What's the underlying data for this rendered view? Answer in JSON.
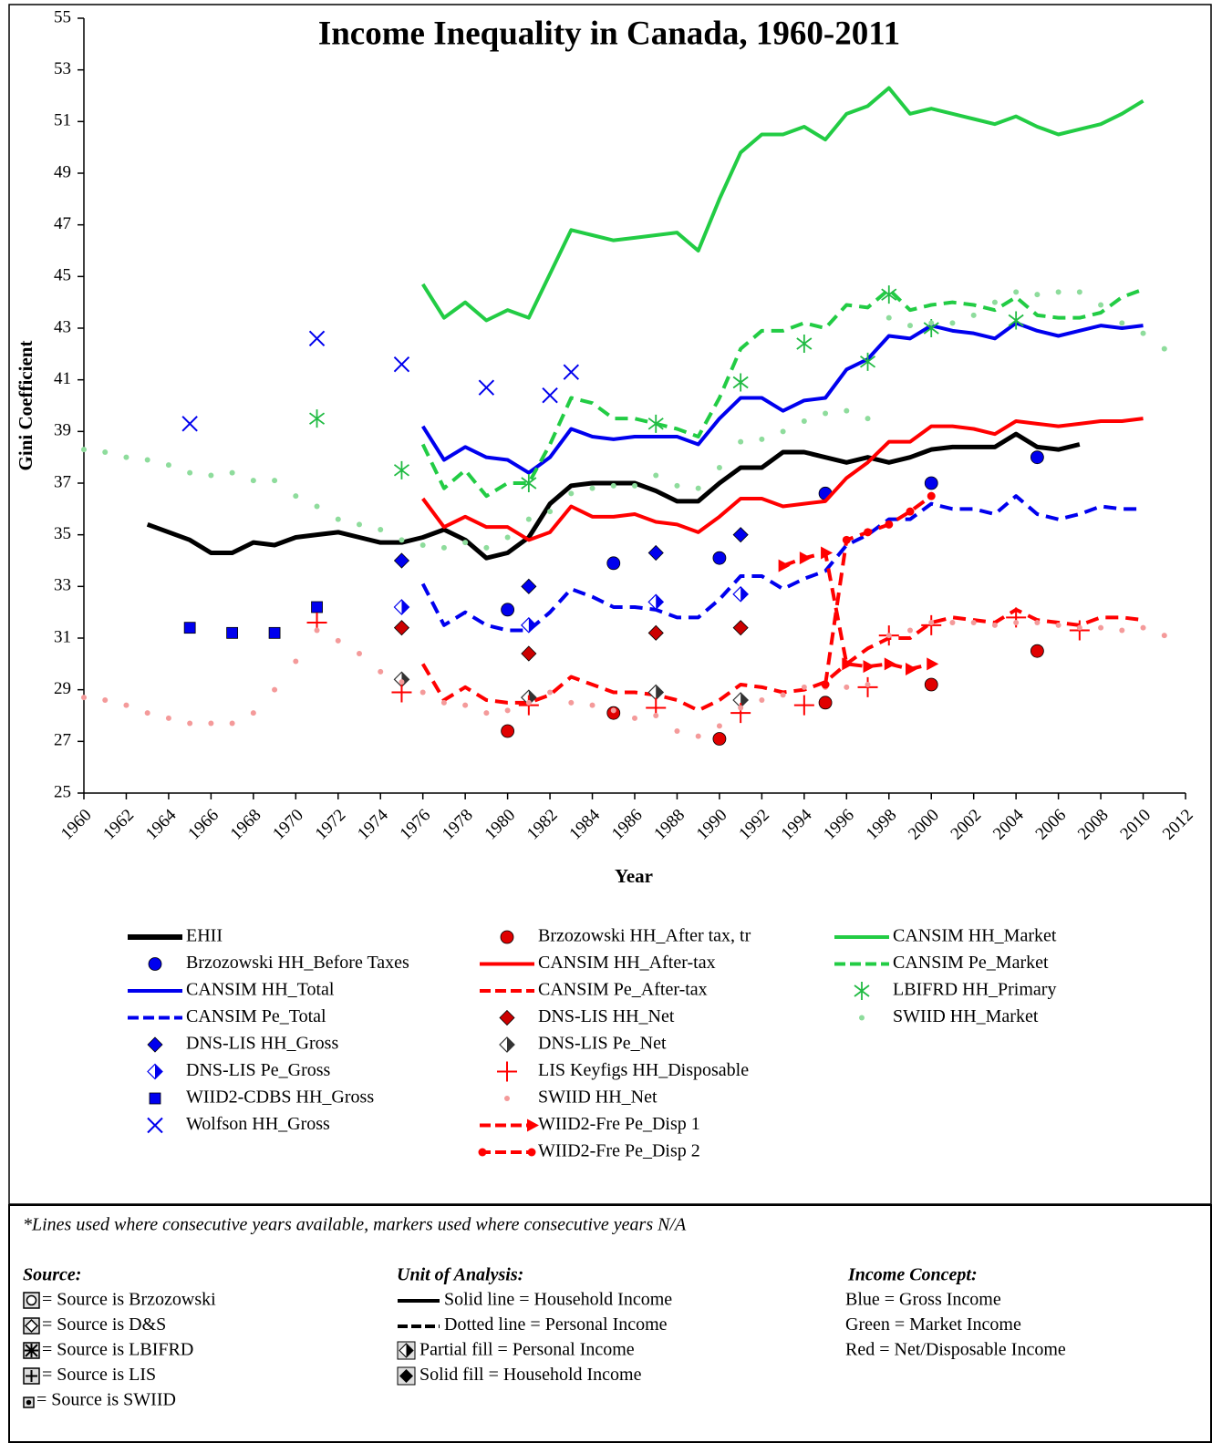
{
  "chart_data": {
    "type": "line",
    "title": "Income Inequality in Canada, 1960-2011",
    "x_label": "Year",
    "y_label": "Gini Coefficient",
    "xlim": [
      1960,
      2012
    ],
    "xticks": [
      1960,
      1962,
      1964,
      1966,
      1968,
      1970,
      1972,
      1974,
      1976,
      1978,
      1980,
      1982,
      1984,
      1986,
      1988,
      1990,
      1992,
      1994,
      1996,
      1998,
      2000,
      2002,
      2004,
      2006,
      2008,
      2010,
      2012
    ],
    "ylim": [
      25,
      55
    ],
    "yticks": [
      25,
      27,
      29,
      31,
      33,
      35,
      37,
      39,
      41,
      43,
      45,
      47,
      49,
      51,
      53,
      55
    ],
    "series": [
      {
        "name": "EHII",
        "color": "#000000",
        "line": "solid",
        "marker": "none",
        "x": [
          1963,
          1964,
          1965,
          1966,
          1967,
          1968,
          1969,
          1970,
          1971,
          1972,
          1973,
          1974,
          1975,
          1976,
          1977,
          1978,
          1979,
          1980,
          1981,
          1982,
          1983,
          1984,
          1985,
          1986,
          1987,
          1988,
          1989,
          1990,
          1991,
          1992,
          1993,
          1994,
          1995,
          1996,
          1997,
          1998,
          1999,
          2000,
          2001,
          2002,
          2003,
          2004,
          2005,
          2006,
          2007
        ],
        "values": [
          35.4,
          35.1,
          34.8,
          34.3,
          34.3,
          34.7,
          34.6,
          34.9,
          35.0,
          35.1,
          34.9,
          34.7,
          34.7,
          34.9,
          35.2,
          34.8,
          34.1,
          34.3,
          34.9,
          36.2,
          36.9,
          37.0,
          37.0,
          37.0,
          36.7,
          36.3,
          36.3,
          37.0,
          37.6,
          37.6,
          38.2,
          38.2,
          38.0,
          37.8,
          38.0,
          37.8,
          38.0,
          38.3,
          38.4,
          38.4,
          38.4,
          38.9,
          38.4,
          38.3,
          38.5
        ]
      },
      {
        "name": "Brzozowski HH_Before Taxes",
        "color": "#0000ee",
        "line": "none",
        "marker": "circle",
        "x": [
          1980,
          1985,
          1990,
          1995,
          2000,
          2005
        ],
        "values": [
          32.1,
          33.9,
          34.1,
          36.6,
          37.0,
          38.0
        ]
      },
      {
        "name": "CANSIM HH_Total",
        "color": "#0000ee",
        "line": "solid",
        "marker": "none",
        "x": [
          1976,
          1977,
          1978,
          1979,
          1980,
          1981,
          1982,
          1983,
          1984,
          1985,
          1986,
          1987,
          1988,
          1989,
          1990,
          1991,
          1992,
          1993,
          1994,
          1995,
          1996,
          1997,
          1998,
          1999,
          2000,
          2001,
          2002,
          2003,
          2004,
          2005,
          2006,
          2007,
          2008,
          2009,
          2010
        ],
        "values": [
          39.2,
          37.9,
          38.4,
          38.0,
          37.9,
          37.4,
          38.0,
          39.1,
          38.8,
          38.7,
          38.8,
          38.8,
          38.8,
          38.5,
          39.5,
          40.3,
          40.3,
          39.8,
          40.2,
          40.3,
          41.4,
          41.8,
          42.7,
          42.6,
          43.1,
          42.9,
          42.8,
          42.6,
          43.2,
          42.9,
          42.7,
          42.9,
          43.1,
          43.0,
          43.1
        ]
      },
      {
        "name": "CANSIM Pe_Total",
        "color": "#0000ee",
        "line": "dashed",
        "marker": "none",
        "x": [
          1976,
          1977,
          1978,
          1979,
          1980,
          1981,
          1982,
          1983,
          1984,
          1985,
          1986,
          1987,
          1988,
          1989,
          1990,
          1991,
          1992,
          1993,
          1994,
          1995,
          1996,
          1997,
          1998,
          1999,
          2000,
          2001,
          2002,
          2003,
          2004,
          2005,
          2006,
          2007,
          2008,
          2009,
          2010
        ],
        "values": [
          33.1,
          31.5,
          32.0,
          31.5,
          31.3,
          31.3,
          32.0,
          32.9,
          32.6,
          32.2,
          32.2,
          32.1,
          31.8,
          31.8,
          32.5,
          33.4,
          33.4,
          32.9,
          33.3,
          33.6,
          34.6,
          35.0,
          35.6,
          35.6,
          36.2,
          36.0,
          36.0,
          35.8,
          36.5,
          35.8,
          35.6,
          35.8,
          36.1,
          36.0,
          36.0
        ]
      },
      {
        "name": "DNS-LIS HH_Gross",
        "color": "#0000ee",
        "line": "none",
        "marker": "diamond",
        "x": [
          1975,
          1981,
          1987,
          1991
        ],
        "values": [
          34.0,
          33.0,
          34.3,
          35.0
        ]
      },
      {
        "name": "DNS-LIS Pe_Gross",
        "color": "#0000ee",
        "line": "none",
        "marker": "half-diamond",
        "x": [
          1975,
          1981,
          1987,
          1991
        ],
        "values": [
          32.2,
          31.5,
          32.4,
          32.7
        ]
      },
      {
        "name": "WIID2-CDBS HH_Gross",
        "color": "#0000ee",
        "line": "none",
        "marker": "square",
        "x": [
          1965,
          1967,
          1969,
          1971
        ],
        "values": [
          31.4,
          31.2,
          31.2,
          32.2
        ]
      },
      {
        "name": "Wolfson HH_Gross",
        "color": "#0000ee",
        "line": "none",
        "marker": "cross",
        "x": [
          1965,
          1971,
          1975,
          1979,
          1982,
          1983
        ],
        "values": [
          39.3,
          42.6,
          41.6,
          40.7,
          40.4,
          41.3
        ]
      },
      {
        "name": "Brzozowski HH_After tax, tr",
        "color": "#e00000",
        "line": "none",
        "marker": "circle",
        "x": [
          1980,
          1985,
          1990,
          1995,
          2000,
          2005
        ],
        "values": [
          27.4,
          28.1,
          27.1,
          28.5,
          29.2,
          30.5
        ]
      },
      {
        "name": "CANSIM HH_After-tax",
        "color": "#ff0000",
        "line": "solid",
        "marker": "none",
        "x": [
          1976,
          1977,
          1978,
          1979,
          1980,
          1981,
          1982,
          1983,
          1984,
          1985,
          1986,
          1987,
          1988,
          1989,
          1990,
          1991,
          1992,
          1993,
          1994,
          1995,
          1996,
          1997,
          1998,
          1999,
          2000,
          2001,
          2002,
          2003,
          2004,
          2005,
          2006,
          2007,
          2008,
          2009,
          2010
        ],
        "values": [
          36.4,
          35.3,
          35.7,
          35.3,
          35.3,
          34.8,
          35.1,
          36.1,
          35.7,
          35.7,
          35.8,
          35.5,
          35.4,
          35.1,
          35.7,
          36.4,
          36.4,
          36.1,
          36.2,
          36.3,
          37.2,
          37.8,
          38.6,
          38.6,
          39.2,
          39.2,
          39.1,
          38.9,
          39.4,
          39.3,
          39.2,
          39.3,
          39.4,
          39.4,
          39.5
        ]
      },
      {
        "name": "CANSIM Pe_After-tax",
        "color": "#ff0000",
        "line": "dashed",
        "marker": "none",
        "x": [
          1976,
          1977,
          1978,
          1979,
          1980,
          1981,
          1982,
          1983,
          1984,
          1985,
          1986,
          1987,
          1988,
          1989,
          1990,
          1991,
          1992,
          1993,
          1994,
          1995,
          1996,
          1997,
          1998,
          1999,
          2000,
          2001,
          2002,
          2003,
          2004,
          2005,
          2006,
          2007,
          2008,
          2009,
          2010
        ],
        "values": [
          30.0,
          28.6,
          29.1,
          28.6,
          28.5,
          28.5,
          28.8,
          29.5,
          29.2,
          28.9,
          28.9,
          28.8,
          28.6,
          28.2,
          28.6,
          29.2,
          29.1,
          28.9,
          29.0,
          29.3,
          30.0,
          30.6,
          31.0,
          31.0,
          31.6,
          31.8,
          31.7,
          31.6,
          32.1,
          31.7,
          31.6,
          31.5,
          31.8,
          31.8,
          31.7
        ]
      },
      {
        "name": "DNS-LIS HH_Net",
        "color": "#cc0000",
        "line": "none",
        "marker": "diamond",
        "x": [
          1975,
          1981,
          1987,
          1991
        ],
        "values": [
          31.4,
          30.4,
          31.2,
          31.4
        ]
      },
      {
        "name": "DNS-LIS Pe_Net",
        "color": "#333333",
        "line": "none",
        "marker": "half-diamond",
        "x": [
          1975,
          1981,
          1987,
          1991
        ],
        "values": [
          29.4,
          28.7,
          28.9,
          28.6
        ]
      },
      {
        "name": "LIS Keyfigs HH_Disposable",
        "color": "#ff0000",
        "line": "none",
        "marker": "plus",
        "x": [
          1971,
          1975,
          1981,
          1987,
          1991,
          1994,
          1997,
          1998,
          2000,
          2004,
          2007
        ],
        "values": [
          31.6,
          28.9,
          28.4,
          28.3,
          28.1,
          28.4,
          29.1,
          31.1,
          31.5,
          31.8,
          31.3
        ]
      },
      {
        "name": "SWIID HH_Net",
        "color": "#f49a9a",
        "line": "none",
        "marker": "dot",
        "x": [
          1960,
          1961,
          1962,
          1963,
          1964,
          1965,
          1966,
          1967,
          1968,
          1969,
          1970,
          1971,
          1972,
          1973,
          1974,
          1975,
          1976,
          1977,
          1978,
          1979,
          1980,
          1981,
          1982,
          1983,
          1984,
          1985,
          1986,
          1987,
          1988,
          1989,
          1990,
          1991,
          1992,
          1993,
          1994,
          1995,
          1996,
          1997,
          1998,
          1999,
          2000,
          2001,
          2002,
          2003,
          2004,
          2005,
          2006,
          2007,
          2008,
          2009,
          2010,
          2011
        ],
        "values": [
          28.7,
          28.6,
          28.4,
          28.1,
          27.9,
          27.7,
          27.7,
          27.7,
          28.1,
          29.0,
          30.1,
          31.3,
          30.9,
          30.4,
          29.7,
          29.3,
          28.9,
          28.5,
          28.4,
          28.1,
          28.2,
          28.5,
          28.9,
          28.5,
          28.4,
          28.2,
          27.9,
          28.0,
          27.4,
          27.2,
          27.6,
          28.3,
          28.6,
          28.8,
          29.1,
          29.1,
          29.1,
          29.2,
          31.1,
          31.3,
          31.6,
          31.6,
          31.6,
          31.5,
          31.6,
          31.6,
          31.5,
          31.4,
          31.4,
          31.3,
          31.4,
          31.1
        ]
      },
      {
        "name": "WIID2-Fre Pe_Disp 1",
        "color": "#ff0000",
        "line": "dashed",
        "marker": "arrow",
        "x": [
          1993,
          1994,
          1995,
          1996,
          1997,
          1998,
          1999,
          2000
        ],
        "values": [
          33.8,
          34.1,
          34.3,
          30.0,
          29.9,
          30.0,
          29.8,
          30.0
        ]
      },
      {
        "name": "WIID2-Fre Pe_Disp 2",
        "color": "#ff0000",
        "line": "dashed",
        "marker": "dot-large",
        "x": [
          1995,
          1996,
          1997,
          1998,
          1999,
          2000
        ],
        "values": [
          29.2,
          34.8,
          35.1,
          35.4,
          35.9,
          36.5
        ]
      },
      {
        "name": "CANSIM HH_Market",
        "color": "#22cc44",
        "line": "solid",
        "marker": "none",
        "x": [
          1976,
          1977,
          1978,
          1979,
          1980,
          1981,
          1982,
          1983,
          1984,
          1985,
          1986,
          1987,
          1988,
          1989,
          1990,
          1991,
          1992,
          1993,
          1994,
          1995,
          1996,
          1997,
          1998,
          1999,
          2000,
          2001,
          2002,
          2003,
          2004,
          2005,
          2006,
          2007,
          2008,
          2009,
          2010
        ],
        "values": [
          44.7,
          43.4,
          44.0,
          43.3,
          43.7,
          43.4,
          45.1,
          46.8,
          46.6,
          46.4,
          46.5,
          46.6,
          46.7,
          46.0,
          48.0,
          49.8,
          50.5,
          50.5,
          50.8,
          50.3,
          51.3,
          51.6,
          52.3,
          51.3,
          51.5,
          51.3,
          51.1,
          50.9,
          51.2,
          50.8,
          50.5,
          50.7,
          50.9,
          51.3,
          51.8
        ]
      },
      {
        "name": "CANSIM Pe_Market",
        "color": "#22cc44",
        "line": "dashed",
        "marker": "none",
        "x": [
          1976,
          1977,
          1978,
          1979,
          1980,
          1981,
          1982,
          1983,
          1984,
          1985,
          1986,
          1987,
          1988,
          1989,
          1990,
          1991,
          1992,
          1993,
          1994,
          1995,
          1996,
          1997,
          1998,
          1999,
          2000,
          2001,
          2002,
          2003,
          2004,
          2005,
          2006,
          2007,
          2008,
          2009,
          2010
        ],
        "values": [
          38.5,
          36.8,
          37.5,
          36.5,
          37.0,
          37.0,
          38.5,
          40.3,
          40.1,
          39.5,
          39.5,
          39.3,
          39.1,
          38.8,
          40.3,
          42.2,
          42.9,
          42.9,
          43.2,
          43.0,
          43.9,
          43.8,
          44.5,
          43.7,
          43.9,
          44.0,
          43.9,
          43.7,
          44.2,
          43.5,
          43.4,
          43.4,
          43.6,
          44.2,
          44.5
        ]
      },
      {
        "name": "LBIFRD HH_Primary",
        "color": "#22bb44",
        "line": "none",
        "marker": "asterisk",
        "x": [
          1971,
          1975,
          1981,
          1987,
          1991,
          1994,
          1997,
          1998,
          2000,
          2004
        ],
        "values": [
          39.5,
          37.5,
          37.0,
          39.3,
          40.9,
          42.4,
          41.7,
          44.3,
          43.0,
          43.3
        ]
      },
      {
        "name": "SWIID HH_Market",
        "color": "#8edc9c",
        "line": "none",
        "marker": "dot",
        "x": [
          1960,
          1961,
          1962,
          1963,
          1964,
          1965,
          1966,
          1967,
          1968,
          1969,
          1970,
          1971,
          1972,
          1973,
          1974,
          1975,
          1976,
          1977,
          1978,
          1979,
          1980,
          1981,
          1982,
          1983,
          1984,
          1985,
          1986,
          1987,
          1988,
          1989,
          1990,
          1991,
          1992,
          1993,
          1994,
          1995,
          1996,
          1997,
          1998,
          1999,
          2000,
          2001,
          2002,
          2003,
          2004,
          2005,
          2006,
          2007,
          2008,
          2009,
          2010,
          2011
        ],
        "values": [
          38.3,
          38.2,
          38.0,
          37.9,
          37.7,
          37.4,
          37.3,
          37.4,
          37.1,
          37.1,
          36.5,
          36.1,
          35.6,
          35.4,
          35.2,
          34.8,
          34.6,
          34.5,
          34.7,
          34.5,
          34.9,
          35.6,
          35.9,
          36.6,
          36.8,
          36.9,
          36.9,
          37.3,
          36.9,
          36.8,
          37.6,
          38.6,
          38.7,
          39.0,
          39.4,
          39.7,
          39.8,
          39.5,
          43.4,
          43.1,
          43.2,
          43.2,
          43.5,
          44.0,
          44.4,
          44.3,
          44.4,
          44.4,
          43.9,
          43.2,
          42.8,
          42.2
        ]
      }
    ]
  },
  "notes": {
    "footnote": "*Lines used where consecutive years available, markers used where consecutive years N/A",
    "source": {
      "heading": "Source:",
      "items": [
        "= Source is Brzozowski",
        "= Source is D&S",
        "= Source is LBIFRD",
        "= Source is LIS",
        "= Source is SWIID"
      ]
    },
    "unit": {
      "heading": "Unit of Analysis:",
      "items": [
        "Solid line = Household Income",
        "Dotted line = Personal Income",
        "Partial fill = Personal Income",
        "Solid fill = Household Income"
      ]
    },
    "concept": {
      "heading": "Income Concept:",
      "items": [
        {
          "word": "Blue",
          "color": "#2222cc",
          "text": "= Gross Income"
        },
        {
          "word": "Green",
          "color": "#33cc55",
          "text": "= Market Income"
        },
        {
          "word": "Red",
          "color": "#dd1111",
          "text": "= Net/Disposable Income"
        }
      ]
    }
  }
}
